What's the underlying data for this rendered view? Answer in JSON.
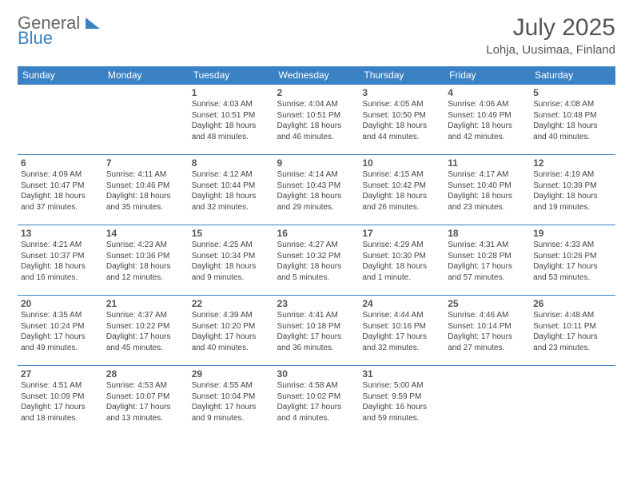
{
  "logo": {
    "part1": "General",
    "part2": "Blue"
  },
  "title": "July 2025",
  "location": "Lohja, Uusimaa, Finland",
  "daynames": [
    "Sunday",
    "Monday",
    "Tuesday",
    "Wednesday",
    "Thursday",
    "Friday",
    "Saturday"
  ],
  "colors": {
    "accent": "#3b82c4",
    "text": "#444444",
    "bg": "#ffffff"
  },
  "weeks": [
    [
      null,
      null,
      {
        "n": "1",
        "sr": "Sunrise: 4:03 AM",
        "ss": "Sunset: 10:51 PM",
        "d1": "Daylight: 18 hours",
        "d2": "and 48 minutes."
      },
      {
        "n": "2",
        "sr": "Sunrise: 4:04 AM",
        "ss": "Sunset: 10:51 PM",
        "d1": "Daylight: 18 hours",
        "d2": "and 46 minutes."
      },
      {
        "n": "3",
        "sr": "Sunrise: 4:05 AM",
        "ss": "Sunset: 10:50 PM",
        "d1": "Daylight: 18 hours",
        "d2": "and 44 minutes."
      },
      {
        "n": "4",
        "sr": "Sunrise: 4:06 AM",
        "ss": "Sunset: 10:49 PM",
        "d1": "Daylight: 18 hours",
        "d2": "and 42 minutes."
      },
      {
        "n": "5",
        "sr": "Sunrise: 4:08 AM",
        "ss": "Sunset: 10:48 PM",
        "d1": "Daylight: 18 hours",
        "d2": "and 40 minutes."
      }
    ],
    [
      {
        "n": "6",
        "sr": "Sunrise: 4:09 AM",
        "ss": "Sunset: 10:47 PM",
        "d1": "Daylight: 18 hours",
        "d2": "and 37 minutes."
      },
      {
        "n": "7",
        "sr": "Sunrise: 4:11 AM",
        "ss": "Sunset: 10:46 PM",
        "d1": "Daylight: 18 hours",
        "d2": "and 35 minutes."
      },
      {
        "n": "8",
        "sr": "Sunrise: 4:12 AM",
        "ss": "Sunset: 10:44 PM",
        "d1": "Daylight: 18 hours",
        "d2": "and 32 minutes."
      },
      {
        "n": "9",
        "sr": "Sunrise: 4:14 AM",
        "ss": "Sunset: 10:43 PM",
        "d1": "Daylight: 18 hours",
        "d2": "and 29 minutes."
      },
      {
        "n": "10",
        "sr": "Sunrise: 4:15 AM",
        "ss": "Sunset: 10:42 PM",
        "d1": "Daylight: 18 hours",
        "d2": "and 26 minutes."
      },
      {
        "n": "11",
        "sr": "Sunrise: 4:17 AM",
        "ss": "Sunset: 10:40 PM",
        "d1": "Daylight: 18 hours",
        "d2": "and 23 minutes."
      },
      {
        "n": "12",
        "sr": "Sunrise: 4:19 AM",
        "ss": "Sunset: 10:39 PM",
        "d1": "Daylight: 18 hours",
        "d2": "and 19 minutes."
      }
    ],
    [
      {
        "n": "13",
        "sr": "Sunrise: 4:21 AM",
        "ss": "Sunset: 10:37 PM",
        "d1": "Daylight: 18 hours",
        "d2": "and 16 minutes."
      },
      {
        "n": "14",
        "sr": "Sunrise: 4:23 AM",
        "ss": "Sunset: 10:36 PM",
        "d1": "Daylight: 18 hours",
        "d2": "and 12 minutes."
      },
      {
        "n": "15",
        "sr": "Sunrise: 4:25 AM",
        "ss": "Sunset: 10:34 PM",
        "d1": "Daylight: 18 hours",
        "d2": "and 9 minutes."
      },
      {
        "n": "16",
        "sr": "Sunrise: 4:27 AM",
        "ss": "Sunset: 10:32 PM",
        "d1": "Daylight: 18 hours",
        "d2": "and 5 minutes."
      },
      {
        "n": "17",
        "sr": "Sunrise: 4:29 AM",
        "ss": "Sunset: 10:30 PM",
        "d1": "Daylight: 18 hours",
        "d2": "and 1 minute."
      },
      {
        "n": "18",
        "sr": "Sunrise: 4:31 AM",
        "ss": "Sunset: 10:28 PM",
        "d1": "Daylight: 17 hours",
        "d2": "and 57 minutes."
      },
      {
        "n": "19",
        "sr": "Sunrise: 4:33 AM",
        "ss": "Sunset: 10:26 PM",
        "d1": "Daylight: 17 hours",
        "d2": "and 53 minutes."
      }
    ],
    [
      {
        "n": "20",
        "sr": "Sunrise: 4:35 AM",
        "ss": "Sunset: 10:24 PM",
        "d1": "Daylight: 17 hours",
        "d2": "and 49 minutes."
      },
      {
        "n": "21",
        "sr": "Sunrise: 4:37 AM",
        "ss": "Sunset: 10:22 PM",
        "d1": "Daylight: 17 hours",
        "d2": "and 45 minutes."
      },
      {
        "n": "22",
        "sr": "Sunrise: 4:39 AM",
        "ss": "Sunset: 10:20 PM",
        "d1": "Daylight: 17 hours",
        "d2": "and 40 minutes."
      },
      {
        "n": "23",
        "sr": "Sunrise: 4:41 AM",
        "ss": "Sunset: 10:18 PM",
        "d1": "Daylight: 17 hours",
        "d2": "and 36 minutes."
      },
      {
        "n": "24",
        "sr": "Sunrise: 4:44 AM",
        "ss": "Sunset: 10:16 PM",
        "d1": "Daylight: 17 hours",
        "d2": "and 32 minutes."
      },
      {
        "n": "25",
        "sr": "Sunrise: 4:46 AM",
        "ss": "Sunset: 10:14 PM",
        "d1": "Daylight: 17 hours",
        "d2": "and 27 minutes."
      },
      {
        "n": "26",
        "sr": "Sunrise: 4:48 AM",
        "ss": "Sunset: 10:11 PM",
        "d1": "Daylight: 17 hours",
        "d2": "and 23 minutes."
      }
    ],
    [
      {
        "n": "27",
        "sr": "Sunrise: 4:51 AM",
        "ss": "Sunset: 10:09 PM",
        "d1": "Daylight: 17 hours",
        "d2": "and 18 minutes."
      },
      {
        "n": "28",
        "sr": "Sunrise: 4:53 AM",
        "ss": "Sunset: 10:07 PM",
        "d1": "Daylight: 17 hours",
        "d2": "and 13 minutes."
      },
      {
        "n": "29",
        "sr": "Sunrise: 4:55 AM",
        "ss": "Sunset: 10:04 PM",
        "d1": "Daylight: 17 hours",
        "d2": "and 9 minutes."
      },
      {
        "n": "30",
        "sr": "Sunrise: 4:58 AM",
        "ss": "Sunset: 10:02 PM",
        "d1": "Daylight: 17 hours",
        "d2": "and 4 minutes."
      },
      {
        "n": "31",
        "sr": "Sunrise: 5:00 AM",
        "ss": "Sunset: 9:59 PM",
        "d1": "Daylight: 16 hours",
        "d2": "and 59 minutes."
      },
      null,
      null
    ]
  ]
}
